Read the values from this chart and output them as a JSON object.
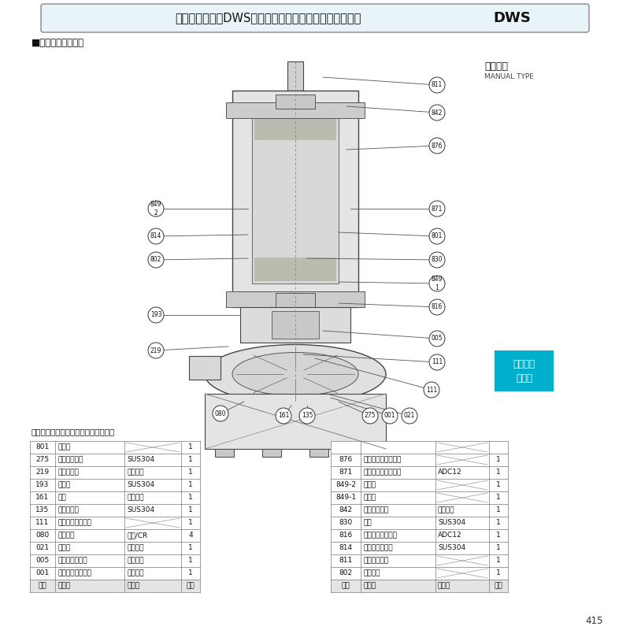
{
  "title_text": "【ダーウィン】DWS型樹脂製汚水・雑排水用水中ポンプ",
  "title_dws": "DWS",
  "section_label": "■構造断面図（例）",
  "manual_type_ja": "非自動形",
  "manual_type_en": "MANUAL TYPE",
  "note_text": "注）主軸材料はポンプ側を示します。",
  "page_number": "415",
  "cyan_box_lines": [
    "汚水汚物",
    "水処理"
  ],
  "cyan_color": "#00AFCC",
  "bg_color": "#ffffff",
  "left_table": [
    [
      "801",
      "ロータ",
      "",
      "1"
    ],
    [
      "275",
      "羽根車ボルト",
      "SUS304",
      "1"
    ],
    [
      "219",
      "相フランジ",
      "合成樹脂",
      "1"
    ],
    [
      "193",
      "注油栓",
      "SUS304",
      "1"
    ],
    [
      "161",
      "底板",
      "合成樹脂",
      "1"
    ],
    [
      "135",
      "羽根裏座金",
      "SUS304",
      "1"
    ],
    [
      "111",
      "メカニカルシール",
      "",
      "1"
    ],
    [
      "080",
      "ポンプ脚",
      "ゴム/CR",
      "4"
    ],
    [
      "021",
      "羽根車",
      "合成樹脂",
      "1"
    ],
    [
      "005",
      "中間ケーシング",
      "合成樹脂",
      "1"
    ],
    [
      "001",
      "ポンプケーシング",
      "合成樹脂",
      "1"
    ],
    [
      "番号",
      "部品名",
      "材　料",
      "個数"
    ]
  ],
  "right_table": [
    [
      "",
      "",
      "",
      ""
    ],
    [
      "876",
      "電動機焼損防止装置",
      "",
      "1"
    ],
    [
      "871",
      "反負荷側ブラケット",
      "ADC12",
      "1"
    ],
    [
      "849-2",
      "玉軸受",
      "",
      "1"
    ],
    [
      "849-1",
      "玉軸受",
      "",
      "1"
    ],
    [
      "842",
      "電動機カバー",
      "合成樹脂",
      "1"
    ],
    [
      "830",
      "主軸",
      "SUS304",
      "1"
    ],
    [
      "816",
      "負荷側ブラケット",
      "ADC12",
      "1"
    ],
    [
      "814",
      "電動機フレーム",
      "SUS304",
      "1"
    ],
    [
      "811",
      "水中ケーブル",
      "",
      "1"
    ],
    [
      "802",
      "ステータ",
      "",
      "1"
    ],
    [
      "番号",
      "部品名",
      "材　料",
      "個数"
    ]
  ]
}
